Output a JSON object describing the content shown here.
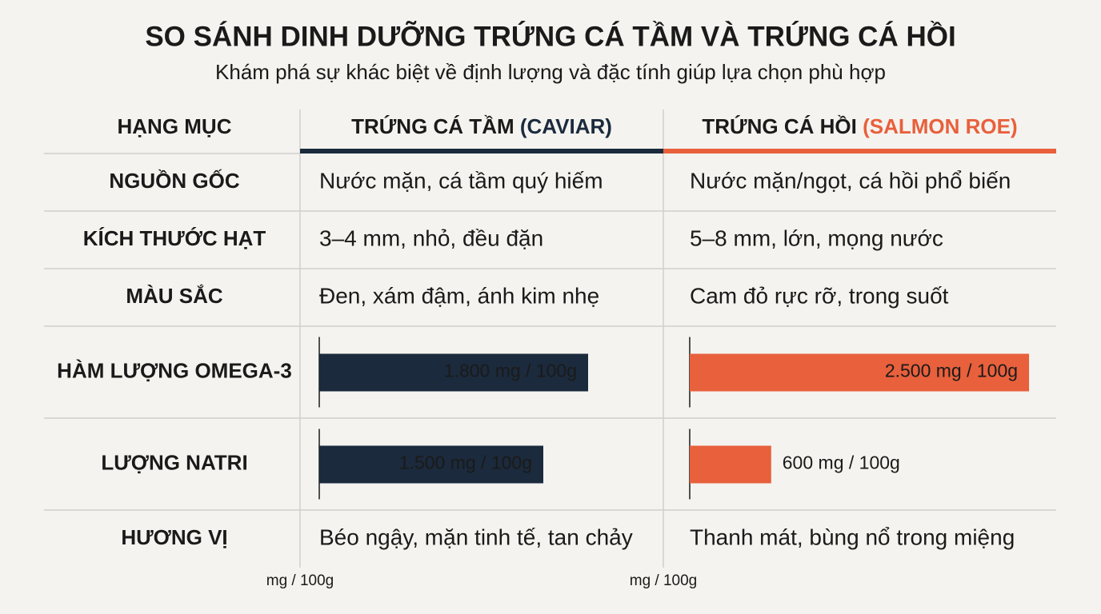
{
  "header": {
    "title": "SO SÁNH DINH DƯỠNG TRỨNG CÁ TẦM VÀ TRỨNG CÁ HỒI",
    "subtitle": "Khám phá sự khác biệt về định lượng và đặc tính giúp lựa chọn phù hợp"
  },
  "table": {
    "header": [
      {
        "text": "HẠNG MỤC"
      },
      {
        "text": "TRỨNG CÁ TẦM",
        "note": "(CAVIAR)",
        "color": "#1b2a3d"
      },
      {
        "text": "TRỨNG CÁ HỒI",
        "note": "(SALMON ROE)",
        "color": "#e8603c"
      }
    ],
    "rows": [
      {
        "label": "NGUỒN GỐC",
        "cells": [
          "Nước mặn, cá tầm quý hiếm",
          "Nước mặn/ngọt, cá hồi phổ biến"
        ]
      },
      {
        "label": "KÍCH THƯỚC HẠT",
        "cells": [
          "3–4 mm, nhỏ, đều đặn",
          "5–8 mm, lớn, mọng nước"
        ]
      },
      {
        "label": "MÀU SẮC",
        "cells": [
          "Đen, xám đậm, ánh kim nhẹ",
          "Cam đỏ rực rỡ, trong suốt"
        ]
      },
      {
        "label": "HÀM LƯỢNG OMEGA-3",
        "values": [
          1800,
          2500
        ],
        "value_labels": [
          "1.800 mg / 100g",
          "2.500 mg / 100g"
        ]
      },
      {
        "label": "LƯỢNG NATRI",
        "values": [
          1500,
          600
        ],
        "value_labels": [
          "1.500 mg / 100g",
          "600 mg / 100g"
        ]
      },
      {
        "label": "HƯƠNG VỊ",
        "cells": [
          "Béo ngậy, mặn tinh tế, tan chảy",
          "Thanh mát, bùng nổ trong miệng"
        ]
      }
    ],
    "axes": [
      {
        "label": "mg / 100g",
        "xlim": [
          0,
          2250
        ]
      },
      {
        "label": "mg / 100g",
        "xlim": [
          0,
          2700
        ]
      }
    ]
  }
}
